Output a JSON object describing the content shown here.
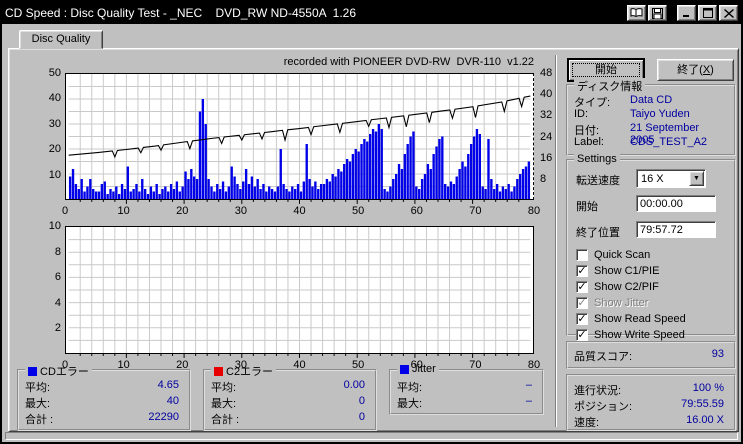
{
  "titlebar": {
    "title": "CD Speed : Disc Quality Test - _NEC    DVD_RW ND-4550A  1.26",
    "buttons": [
      "open-book",
      "save",
      "minimize",
      "maximize",
      "close"
    ]
  },
  "tab": {
    "label": "Disc Quality"
  },
  "buttons": {
    "start_label": "開始",
    "exit": {
      "pre": "終了(",
      "key": "X",
      "post": ")"
    }
  },
  "disc_info": {
    "legend": "ディスク情報",
    "rows": [
      {
        "label": "タイプ:",
        "value": "Data CD"
      },
      {
        "label": "ID:",
        "value": "Taiyo Yuden"
      },
      {
        "label": "日付:",
        "value": "21 September 2005"
      },
      {
        "label": "Label:",
        "value": "CDS_TEST_A2"
      }
    ]
  },
  "settings": {
    "legend": "Settings",
    "speed_label": "転送速度",
    "speed_value": "16 X",
    "start_label": "開始",
    "start_value": "00:00.00",
    "end_label": "終了位置",
    "end_value": "79:57.72",
    "checkboxes": [
      {
        "label": "Quick Scan",
        "checked": false,
        "disabled": false
      },
      {
        "label": "Show C1/PIE",
        "checked": true,
        "disabled": false
      },
      {
        "label": "Show C2/PIF",
        "checked": true,
        "disabled": false
      },
      {
        "label": "Show Jitter",
        "checked": true,
        "disabled": true
      },
      {
        "label": "Show Read Speed",
        "checked": true,
        "disabled": false
      },
      {
        "label": "Show Write Speed",
        "checked": true,
        "disabled": false
      }
    ]
  },
  "quality": {
    "label": "品質スコア:",
    "value": "93"
  },
  "progress": {
    "rows": [
      {
        "label": "進行状況:",
        "value": "100 %"
      },
      {
        "label": "ポジション:",
        "value": "79:55.59"
      },
      {
        "label": "速度:",
        "value": "16.00 X"
      }
    ]
  },
  "stats": [
    {
      "legend": "CDエラー",
      "color": "#0000e8",
      "rows": [
        {
          "label": "平均:",
          "value": "4.65"
        },
        {
          "label": "最大:",
          "value": "40"
        },
        {
          "label": "合計 :",
          "value": "22290"
        }
      ]
    },
    {
      "legend": "C2エラー",
      "color": "#e80000",
      "rows": [
        {
          "label": "平均:",
          "value": "0.00"
        },
        {
          "label": "最大:",
          "value": "0"
        },
        {
          "label": "合計 :",
          "value": "0"
        }
      ]
    },
    {
      "legend": "Jitter",
      "color": "#0000e8",
      "rows": [
        {
          "label": "平均:",
          "value": "–"
        },
        {
          "label": "最大:",
          "value": "–"
        }
      ]
    }
  ],
  "chart_data": [
    {
      "type": "bar",
      "title": "recorded with PIONEER DVD-RW  DVR-110  v1.22",
      "x_range": [
        0,
        80
      ],
      "y_left_range": [
        0,
        50
      ],
      "y_right_range": [
        0,
        48
      ],
      "x_ticks": [
        0,
        10,
        20,
        30,
        40,
        50,
        60,
        70,
        80
      ],
      "y_left_ticks": [
        50,
        40,
        30,
        20,
        10
      ],
      "y_right_ticks": [
        48,
        40,
        32,
        24,
        16,
        8
      ],
      "grid": true,
      "bar_series": {
        "name": "C1/PIE errors",
        "color": "#0000e8",
        "x_start": 0.25,
        "x_step": 0.5,
        "values": [
          9,
          12,
          6,
          4,
          8,
          3,
          5,
          8,
          4,
          3,
          3,
          6,
          7,
          2,
          4,
          3,
          5,
          2,
          6,
          4,
          13,
          3,
          4,
          6,
          3,
          8,
          4,
          2,
          5,
          3,
          6,
          2,
          4,
          5,
          3,
          6,
          4,
          7,
          3,
          5,
          11,
          8,
          12,
          9,
          8,
          35,
          40,
          30,
          8,
          5,
          3,
          6,
          4,
          7,
          3,
          5,
          13,
          9,
          6,
          4,
          7,
          12,
          6,
          9,
          5,
          8,
          4,
          6,
          3,
          5,
          4,
          3,
          5,
          20,
          6,
          4,
          3,
          5,
          4,
          6,
          3,
          7,
          22,
          8,
          5,
          7,
          4,
          6,
          6,
          8,
          7,
          10,
          9,
          12,
          11,
          14,
          16,
          15,
          18,
          20,
          19,
          22,
          24,
          23,
          26,
          28,
          27,
          30,
          28,
          4,
          3,
          5,
          8,
          10,
          14,
          12,
          18,
          22,
          25,
          27,
          5,
          4,
          8,
          10,
          14,
          12,
          18,
          21,
          24,
          25,
          6,
          5,
          7,
          6,
          9,
          12,
          15,
          13,
          18,
          22,
          25,
          28,
          26,
          5,
          4,
          24,
          8,
          4,
          6,
          3,
          5,
          4,
          6,
          3,
          5,
          8,
          10,
          12,
          13,
          15
        ]
      },
      "line_series": {
        "name": "Write Speed",
        "color": "#000000",
        "base_points": [
          [
            0,
            17.5
          ],
          [
            5,
            18.6
          ],
          [
            10,
            19.8
          ],
          [
            15,
            21.2
          ],
          [
            20,
            22.8
          ],
          [
            25,
            24.3
          ],
          [
            30,
            25.6
          ],
          [
            35,
            26.9
          ],
          [
            40,
            28.2
          ],
          [
            45,
            29.6
          ],
          [
            50,
            31.0
          ],
          [
            55,
            32.4
          ],
          [
            60,
            33.8
          ],
          [
            65,
            35.3
          ],
          [
            70,
            36.9
          ],
          [
            75,
            38.8
          ],
          [
            80,
            41.2
          ]
        ],
        "dips": [
          [
            8,
            2.5
          ],
          [
            12.5,
            2
          ],
          [
            16,
            2
          ],
          [
            21,
            3
          ],
          [
            26.5,
            2.5
          ],
          [
            30,
            2
          ],
          [
            33.5,
            2.5
          ],
          [
            37.5,
            4
          ],
          [
            42,
            3
          ],
          [
            47,
            3.5
          ],
          [
            52,
            2.5
          ],
          [
            55.5,
            4
          ],
          [
            58.5,
            4.5
          ],
          [
            62.5,
            4
          ],
          [
            66.5,
            3.5
          ],
          [
            70.5,
            4.5
          ],
          [
            75.5,
            4
          ],
          [
            78.5,
            3.5
          ]
        ]
      }
    },
    {
      "type": "empty-grid",
      "name": "Jitter",
      "x_range": [
        0,
        80
      ],
      "y_range": [
        0,
        10
      ],
      "x_ticks": [
        0,
        10,
        20,
        30,
        40,
        50,
        60,
        70,
        80
      ],
      "y_ticks": [
        10,
        8,
        6,
        4,
        2
      ],
      "grid": true,
      "values": []
    }
  ],
  "status_bar": {
    "text": ""
  }
}
